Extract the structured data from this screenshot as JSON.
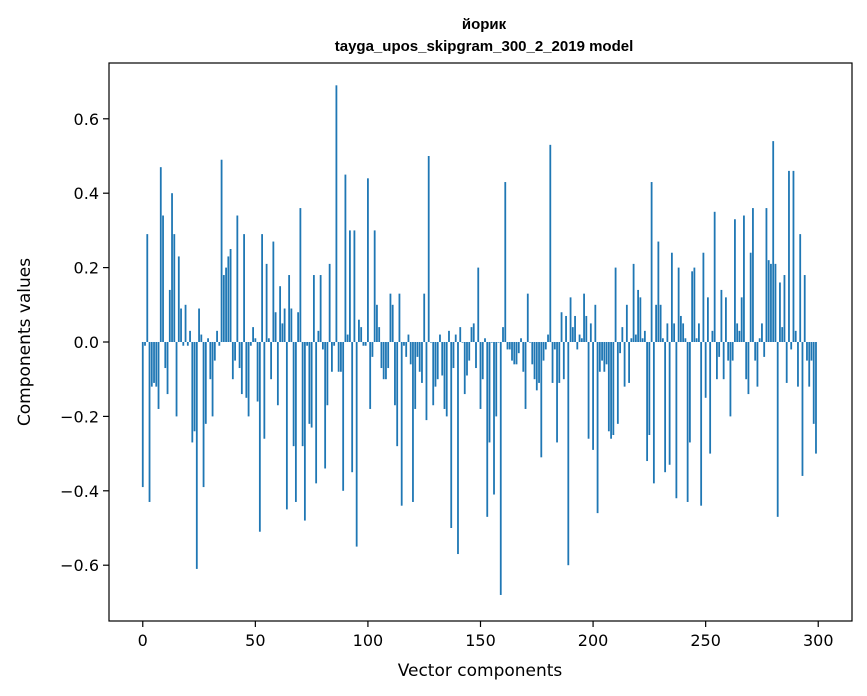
{
  "chart_data": {
    "type": "bar",
    "title": "йорик",
    "subtitle": "tayga_upos_skipgram_300_2_2019 model",
    "xlabel": "Vector components",
    "ylabel": "Components values",
    "xlim": [
      -15,
      315
    ],
    "ylim": [
      -0.75,
      0.75
    ],
    "x_ticks": [
      "0",
      "50",
      "100",
      "150",
      "200",
      "250",
      "300"
    ],
    "y_ticks": [
      "−0.6",
      "−0.4",
      "−0.2",
      "0.0",
      "0.2",
      "0.4",
      "0.6"
    ],
    "bar_color": "#1f77b4",
    "grid": false,
    "values": [
      -0.39,
      -0.01,
      0.29,
      -0.43,
      -0.12,
      -0.11,
      -0.12,
      -0.18,
      0.47,
      0.34,
      -0.07,
      -0.14,
      0.14,
      0.4,
      0.29,
      -0.2,
      0.23,
      0.09,
      -0.01,
      0.1,
      -0.01,
      0.03,
      -0.27,
      -0.24,
      -0.61,
      0.09,
      0.02,
      -0.39,
      -0.22,
      0.01,
      -0.1,
      -0.2,
      -0.05,
      0.03,
      -0.01,
      0.49,
      0.18,
      0.2,
      0.23,
      0.25,
      -0.1,
      -0.05,
      0.34,
      -0.07,
      -0.14,
      0.29,
      -0.15,
      -0.2,
      -0.01,
      0.04,
      0.01,
      -0.16,
      -0.51,
      0.29,
      -0.26,
      0.21,
      0.01,
      -0.1,
      0.27,
      0.08,
      -0.17,
      0.15,
      0.05,
      0.09,
      -0.45,
      0.18,
      0.09,
      -0.28,
      -0.43,
      0.08,
      0.36,
      -0.28,
      -0.48,
      -0.01,
      -0.22,
      -0.23,
      0.18,
      -0.38,
      0.03,
      0.18,
      -0.02,
      -0.34,
      -0.17,
      0.21,
      -0.08,
      -0.01,
      0.69,
      -0.08,
      -0.08,
      -0.4,
      0.45,
      0.02,
      0.3,
      -0.35,
      0.3,
      -0.55,
      0.06,
      0.04,
      -0.01,
      -0.01,
      0.44,
      -0.18,
      -0.04,
      0.3,
      0.1,
      0.04,
      -0.07,
      -0.1,
      -0.1,
      -0.07,
      0.13,
      0.1,
      -0.17,
      -0.28,
      0.13,
      -0.44,
      -0.01,
      -0.04,
      0.02,
      -0.06,
      -0.43,
      -0.18,
      -0.04,
      -0.08,
      -0.11,
      0.13,
      -0.21,
      0.5,
      0.0,
      -0.17,
      -0.12,
      -0.1,
      0.02,
      -0.09,
      -0.18,
      -0.2,
      0.03,
      -0.5,
      -0.07,
      0.02,
      -0.57,
      0.04,
      0.0,
      -0.14,
      -0.09,
      -0.05,
      0.04,
      0.05,
      -0.07,
      0.2,
      -0.18,
      -0.1,
      0.01,
      -0.47,
      -0.27,
      0.0,
      -0.41,
      -0.2,
      0.0,
      -0.68,
      0.04,
      0.43,
      -0.02,
      -0.02,
      -0.05,
      -0.06,
      -0.06,
      -0.03,
      0.01,
      -0.08,
      -0.18,
      0.13,
      0.0,
      -0.06,
      -0.1,
      -0.13,
      -0.11,
      -0.31,
      -0.05,
      -0.02,
      0.02,
      0.53,
      -0.11,
      -0.02,
      -0.27,
      -0.11,
      0.08,
      -0.1,
      0.07,
      -0.6,
      0.12,
      0.04,
      0.07,
      -0.02,
      0.02,
      0.01,
      0.13,
      0.07,
      -0.26,
      0.05,
      -0.29,
      0.1,
      -0.46,
      -0.08,
      -0.05,
      -0.08,
      -0.06,
      -0.24,
      -0.26,
      -0.25,
      0.2,
      -0.22,
      -0.03,
      0.04,
      -0.12,
      0.1,
      -0.11,
      0.01,
      0.21,
      0.02,
      0.14,
      0.12,
      0.01,
      0.03,
      -0.32,
      -0.25,
      0.43,
      -0.38,
      0.1,
      0.27,
      0.1,
      0.01,
      -0.35,
      0.05,
      -0.33,
      0.24,
      0.05,
      -0.42,
      0.2,
      0.07,
      0.05,
      0.01,
      -0.43,
      -0.27,
      0.19,
      0.2,
      0.01,
      0.05,
      -0.44,
      0.24,
      -0.15,
      0.12,
      -0.3,
      0.03,
      0.35,
      -0.1,
      -0.04,
      0.14,
      -0.1,
      0.12,
      -0.05,
      -0.2,
      -0.05,
      0.33,
      0.05,
      0.03,
      0.12,
      0.34,
      -0.1,
      -0.14,
      0.24,
      0.36,
      -0.05,
      -0.12,
      0.01,
      0.05,
      -0.04,
      0.36,
      0.22,
      0.21,
      0.54,
      0.21,
      -0.47,
      0.16,
      0.04,
      0.18,
      -0.11,
      0.46,
      -0.02,
      0.46,
      0.03,
      -0.12,
      0.29,
      -0.36,
      0.18,
      -0.05,
      -0.12,
      -0.05,
      -0.22,
      -0.3
    ]
  }
}
